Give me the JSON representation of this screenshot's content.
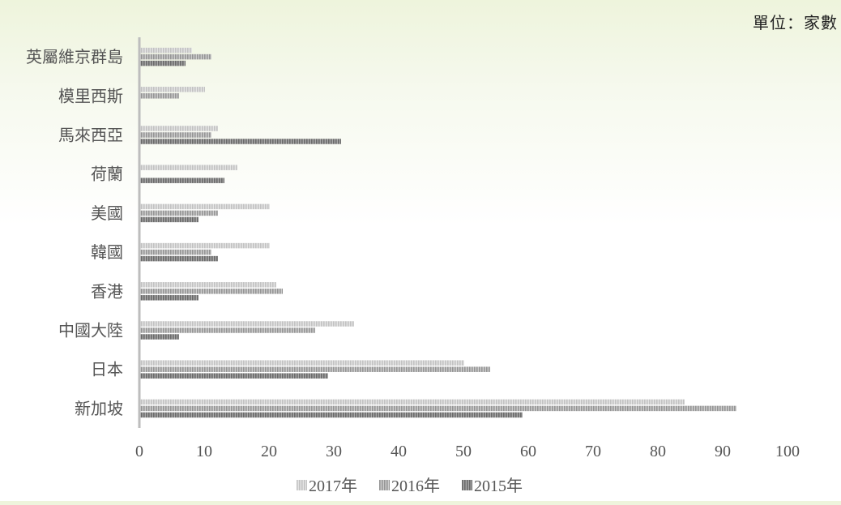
{
  "unit_label": "單位：家數",
  "chart_data": {
    "type": "bar",
    "orientation": "horizontal",
    "categories": [
      "英屬維京群島",
      "模里西斯",
      "馬來西亞",
      "荷蘭",
      "美國",
      "韓國",
      "香港",
      "中國大陸",
      "日本",
      "新加坡"
    ],
    "series": [
      {
        "name": "2017年",
        "color": "#c8c8c8",
        "values": [
          8,
          10,
          12,
          15,
          20,
          20,
          21,
          33,
          50,
          84
        ]
      },
      {
        "name": "2016年",
        "color": "#a8a8a8",
        "values": [
          11,
          6,
          11,
          0,
          12,
          11,
          22,
          27,
          54,
          92
        ]
      },
      {
        "name": "2015年",
        "color": "#808080",
        "values": [
          7,
          0,
          31,
          13,
          9,
          12,
          9,
          6,
          29,
          59
        ]
      }
    ],
    "xlim": [
      0,
      100
    ],
    "xticks": [
      0,
      10,
      20,
      30,
      40,
      50,
      60,
      70,
      80,
      90,
      100
    ],
    "grid": false,
    "legend_position": "bottom"
  }
}
